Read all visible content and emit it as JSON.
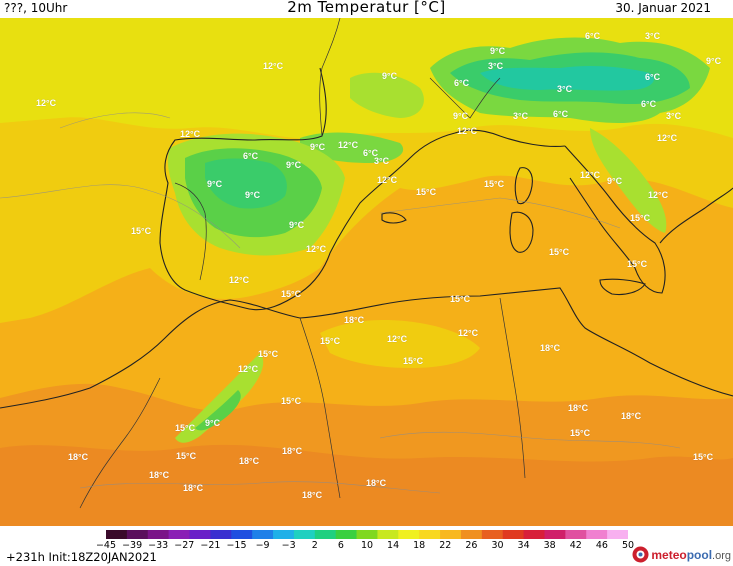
{
  "header": {
    "left": "???, 10Uhr",
    "title": "2m Temperatur [°C]",
    "date": "30. Januar 2021"
  },
  "map": {
    "region": "Western Mediterranean",
    "labels": [
      {
        "text": "12°C"
      },
      {
        "text": "12°C"
      },
      {
        "text": "9°C"
      },
      {
        "text": "9°C"
      },
      {
        "text": "6°C"
      },
      {
        "text": "3°C"
      },
      {
        "text": "6°C"
      },
      {
        "text": "3°C"
      },
      {
        "text": "9°C"
      },
      {
        "text": "6°C"
      },
      {
        "text": "3°C"
      },
      {
        "text": "9°C"
      },
      {
        "text": "3°C"
      },
      {
        "text": "6°C"
      },
      {
        "text": "6°C"
      },
      {
        "text": "3°C"
      },
      {
        "text": "12°C"
      },
      {
        "text": "12°C"
      },
      {
        "text": "12°C"
      },
      {
        "text": "9°C"
      },
      {
        "text": "12°C"
      },
      {
        "text": "6°C"
      },
      {
        "text": "3°C"
      },
      {
        "text": "6°C"
      },
      {
        "text": "9°C"
      },
      {
        "text": "12°C"
      },
      {
        "text": "9°C"
      },
      {
        "text": "9°C"
      },
      {
        "text": "15°C"
      },
      {
        "text": "15°C"
      },
      {
        "text": "12°C"
      },
      {
        "text": "9°C"
      },
      {
        "text": "12°C"
      },
      {
        "text": "15°C"
      },
      {
        "text": "9°C"
      },
      {
        "text": "12°C"
      },
      {
        "text": "15°C"
      },
      {
        "text": "15°C"
      },
      {
        "text": "15°C"
      },
      {
        "text": "12°C"
      },
      {
        "text": "15°C"
      },
      {
        "text": "15°C"
      },
      {
        "text": "18°C"
      },
      {
        "text": "15°C"
      },
      {
        "text": "12°C"
      },
      {
        "text": "12°C"
      },
      {
        "text": "18°C"
      },
      {
        "text": "15°C"
      },
      {
        "text": "15°C"
      },
      {
        "text": "12°C"
      },
      {
        "text": "15°C"
      },
      {
        "text": "15°C"
      },
      {
        "text": "9°C"
      },
      {
        "text": "18°C"
      },
      {
        "text": "18°C"
      },
      {
        "text": "15°C"
      },
      {
        "text": "18°C"
      },
      {
        "text": "15°C"
      },
      {
        "text": "18°C"
      },
      {
        "text": "18°C"
      },
      {
        "text": "18°C"
      },
      {
        "text": "18°C"
      },
      {
        "text": "18°C"
      },
      {
        "text": "15°C"
      },
      {
        "text": "18°C"
      }
    ]
  },
  "colorbar": {
    "ticks": [
      "−45",
      "−39",
      "−33",
      "−27",
      "−21",
      "−15",
      "−9",
      "−3",
      "2",
      "6",
      "10",
      "14",
      "18",
      "22",
      "26",
      "30",
      "34",
      "38",
      "42",
      "46",
      "50"
    ],
    "colors": [
      "#3a0a2a",
      "#5a0f5c",
      "#7a1488",
      "#8a1fb5",
      "#6a1fc8",
      "#3a2fd0",
      "#1f4fe0",
      "#1f80e8",
      "#1fb0e8",
      "#1fd0c0",
      "#1fd080",
      "#3ad040",
      "#80d820",
      "#c8e820",
      "#f0f020",
      "#f8d820",
      "#f8b820",
      "#f09020",
      "#e86020",
      "#e03a20",
      "#d81f3a",
      "#d01f6a",
      "#e050a0",
      "#f080d0",
      "#f8b0f0"
    ]
  },
  "footer": {
    "run_info": "+231h Init:18Z20JAN2021",
    "brand_part1": "meteo",
    "brand_part2": "pool",
    "brand_part3": ".org"
  }
}
